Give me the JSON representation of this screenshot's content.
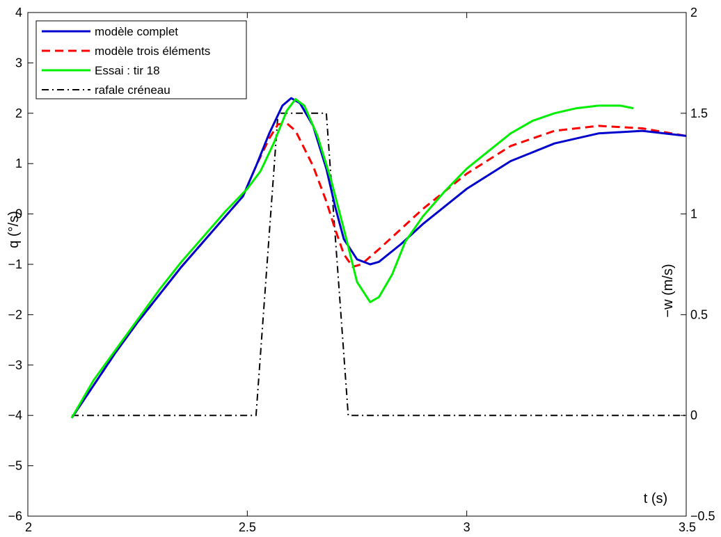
{
  "chart_data": {
    "type": "line",
    "xlabel": "t (s)",
    "ylabel_left": "q (°/s)",
    "ylabel_right": "−w (m/s)",
    "xlim": [
      2,
      3.5
    ],
    "ylim_left": [
      -6,
      4
    ],
    "ylim_right": [
      -0.5,
      2
    ],
    "x_ticks": [
      2,
      2.5,
      3,
      3.5
    ],
    "x_tick_labels": [
      "2",
      "2.5",
      "3",
      "3.5"
    ],
    "y_left_ticks": [
      -6,
      -5,
      -4,
      -3,
      -2,
      -1,
      0,
      1,
      2,
      3,
      4
    ],
    "y_left_tick_labels": [
      "−6",
      "−5",
      "−4",
      "−3",
      "−2",
      "−1",
      "0",
      "1",
      "2",
      "3",
      "4"
    ],
    "y_right_ticks": [
      -0.5,
      0,
      0.5,
      1,
      1.5,
      2
    ],
    "y_right_tick_labels": [
      "−0.5",
      "0",
      "0.5",
      "1",
      "1.5",
      "2"
    ],
    "grid": false,
    "legend_position": "top-left",
    "series": [
      {
        "name": "modèle complet",
        "axis": "left",
        "color": "#0000cc",
        "dash": "solid",
        "x": [
          2.1,
          2.15,
          2.2,
          2.25,
          2.3,
          2.35,
          2.4,
          2.45,
          2.49,
          2.52,
          2.55,
          2.58,
          2.6,
          2.62,
          2.65,
          2.68,
          2.7,
          2.72,
          2.75,
          2.78,
          2.8,
          2.85,
          2.9,
          3.0,
          3.1,
          3.2,
          3.3,
          3.4,
          3.5
        ],
        "y": [
          -4.05,
          -3.4,
          -2.75,
          -2.15,
          -1.6,
          -1.05,
          -0.55,
          -0.05,
          0.35,
          0.95,
          1.6,
          2.15,
          2.3,
          2.2,
          1.75,
          0.9,
          0.15,
          -0.5,
          -0.9,
          -1.0,
          -0.95,
          -0.6,
          -0.2,
          0.5,
          1.05,
          1.4,
          1.6,
          1.65,
          1.55
        ]
      },
      {
        "name": "modèle trois éléments",
        "axis": "left",
        "color": "#ff0000",
        "dash": "dashed",
        "x": [
          2.1,
          2.15,
          2.2,
          2.25,
          2.3,
          2.35,
          2.4,
          2.45,
          2.49,
          2.52,
          2.55,
          2.57,
          2.59,
          2.61,
          2.63,
          2.65,
          2.68,
          2.7,
          2.72,
          2.74,
          2.76,
          2.78,
          2.8,
          2.85,
          2.9,
          3.0,
          3.1,
          3.2,
          3.3,
          3.4,
          3.5
        ],
        "y": [
          -4.05,
          -3.4,
          -2.75,
          -2.15,
          -1.6,
          -1.05,
          -0.55,
          -0.05,
          0.35,
          0.95,
          1.5,
          1.78,
          1.8,
          1.65,
          1.3,
          0.95,
          0.25,
          -0.3,
          -0.8,
          -1.05,
          -1.0,
          -0.85,
          -0.7,
          -0.3,
          0.1,
          0.8,
          1.35,
          1.65,
          1.75,
          1.7,
          1.55
        ]
      },
      {
        "name": "Essai : tir 18",
        "axis": "left",
        "color": "#00ee00",
        "dash": "solid",
        "x": [
          2.1,
          2.15,
          2.2,
          2.25,
          2.3,
          2.35,
          2.4,
          2.45,
          2.5,
          2.53,
          2.56,
          2.59,
          2.61,
          2.63,
          2.66,
          2.69,
          2.72,
          2.75,
          2.78,
          2.8,
          2.83,
          2.86,
          2.9,
          2.95,
          3.0,
          3.05,
          3.1,
          3.15,
          3.2,
          3.25,
          3.3,
          3.35,
          3.38
        ],
        "y": [
          -4.05,
          -3.3,
          -2.7,
          -2.1,
          -1.5,
          -0.95,
          -0.45,
          0.05,
          0.5,
          0.85,
          1.4,
          2.05,
          2.28,
          2.15,
          1.55,
          0.7,
          -0.3,
          -1.35,
          -1.75,
          -1.65,
          -1.2,
          -0.55,
          -0.05,
          0.45,
          0.9,
          1.25,
          1.6,
          1.85,
          2.0,
          2.1,
          2.15,
          2.15,
          2.1
        ]
      },
      {
        "name": "rafale créneau",
        "axis": "right",
        "color": "#000000",
        "dash": "dashdot",
        "x": [
          2.1,
          2.52,
          2.57,
          2.68,
          2.73,
          3.5
        ],
        "y": [
          0,
          0,
          1.5,
          1.5,
          0,
          0
        ]
      }
    ]
  }
}
